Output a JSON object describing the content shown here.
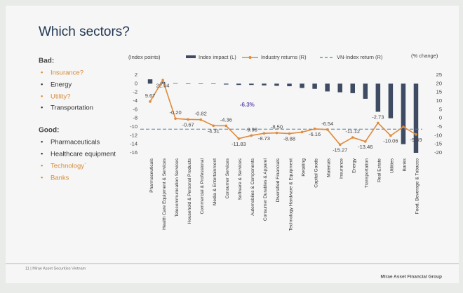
{
  "slide": {
    "title": "Which sectors?",
    "bad_heading": "Bad:",
    "bad": [
      "Insurance?",
      "Energy",
      "Utility?",
      "Transportation"
    ],
    "good_heading": "Good:",
    "good": [
      "Pharmaceuticals",
      "Healthcare equipment",
      "Technology`",
      "Banks"
    ],
    "footer_left": "11 | Mirae Asset Securities Vietnam",
    "footer_right": "Mirae Asset Financial Group"
  },
  "chart_data": {
    "type": "combo",
    "y_label": "(Index points)",
    "y2_label": "(% change)",
    "categories": [
      "Pharmaceuticals",
      "Health Care Equipment & Services",
      "Telecommunication Services",
      "Household & Personal Products",
      "Commercial & Professional",
      "Media & Entertainment",
      "Consumer Services",
      "Software & Services",
      "Automobiles & Components",
      "Consumer Durables & Apparel",
      "Diversified Financials",
      "Technology Hardware & Equipment",
      "Retailing",
      "Capital Goods",
      "Materials",
      "Insurance",
      "Energy",
      "Transportation",
      "Real Estate",
      "Utilities",
      "Banks",
      "Food, Beverage & Tobacco"
    ],
    "series": [
      {
        "name": "Index impact (L)",
        "type": "bar",
        "color": "#3f4b63",
        "values": [
          1,
          0.4,
          0.1,
          -0.1,
          -0.1,
          -0.1,
          -0.2,
          -0.3,
          -0.3,
          -0.4,
          -0.5,
          -0.6,
          -1,
          -1.2,
          -1.8,
          -2,
          -2.2,
          -3.5,
          -6.5,
          -8,
          -14,
          -16
        ]
      },
      {
        "name": "Industry returns (R)",
        "type": "line",
        "axis": "y2",
        "color": "#e08a3c",
        "values": [
          9.67,
          22.04,
          -0.2,
          -0.67,
          -0.82,
          -4.31,
          -4.36,
          -11.83,
          -9.98,
          -8.73,
          -8.5,
          -8.88,
          -8,
          -6.16,
          -6.54,
          -15.27,
          -11.12,
          -13.46,
          -2.73,
          -10.06,
          -5,
          -9.39
        ],
        "value_labels": [
          "9.67",
          "22.04",
          "-0.20",
          "-0.67",
          "-0.82",
          "-4.31",
          "-4.36",
          "-11.83",
          "-9.98",
          "-8.73",
          "-8.50",
          "-8.88",
          null,
          "-6.16",
          "-6.54",
          "-15.27",
          "-11.12",
          "-13.46",
          "-2.73",
          "-10.06",
          null,
          "-9.39"
        ]
      }
    ],
    "vn_index": {
      "name": "VN-Index return (R)",
      "value": -6.3,
      "value_label": "-6.3%",
      "color": "#5b7a9c"
    },
    "ylim": [
      -16,
      2
    ],
    "yticks": [
      2,
      0,
      -2,
      -4,
      -6,
      -8,
      -10,
      -12,
      -14,
      -16
    ],
    "y2lim": [
      -20,
      25
    ],
    "y2ticks": [
      25,
      20,
      15,
      10,
      5,
      0,
      -5,
      -10,
      -15,
      -20
    ]
  }
}
